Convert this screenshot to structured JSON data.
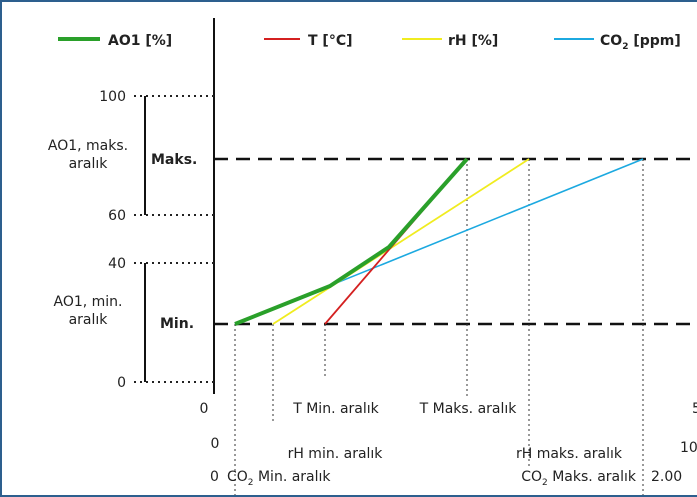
{
  "legend": [
    {
      "label": "AO1 [%]",
      "color": "#2aa02a"
    },
    {
      "label": "T [°C]",
      "color": "#d42020"
    },
    {
      "label": "rH [%]",
      "color": "#f0ec20"
    },
    {
      "label": "CO",
      "sub": "2",
      "unit": " [ppm]",
      "color": "#1ca9e0"
    }
  ],
  "y_ticks": [
    "100",
    "60",
    "40",
    "0"
  ],
  "y_ranges": {
    "max_range": [
      "AO1, maks.",
      "aralık"
    ],
    "min_range": [
      "AO1, min.",
      "aralık"
    ]
  },
  "levels": {
    "max": "Maks.",
    "min": "Min."
  },
  "x_axis": {
    "T": {
      "zero": "0",
      "min": "T Min. aralık",
      "max": "T Maks. aralık",
      "end": "5"
    },
    "rH": {
      "zero": "0",
      "min": "rH min. aralık",
      "max": "rH maks. aralık",
      "end": "10"
    },
    "CO2": {
      "zero": "0",
      "min_pre": "CO",
      "sub": "2",
      "min_post": " Min. aralık",
      "max_pre": "CO",
      "max_post": " Maks. aralık",
      "end": "2.00"
    }
  }
}
